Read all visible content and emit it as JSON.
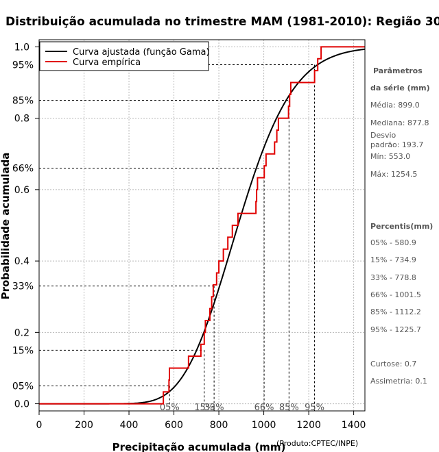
{
  "chart_data": {
    "type": "line",
    "title": "Distribuição acumulada no trimestre MAM (1981-2010): Região 30",
    "xlabel": "Precipitação acumulada (mm)",
    "ylabel": "Probabilidade acumulada",
    "xlim": [
      0,
      1450
    ],
    "ylim": [
      -0.02,
      1.02
    ],
    "x_ticks": [
      0,
      200,
      400,
      600,
      800,
      1000,
      1200,
      1400
    ],
    "x_tick_labels": [
      "0",
      "200",
      "400",
      "600",
      "800",
      "1000",
      "1200",
      "1400"
    ],
    "y_ticks": [
      0.0,
      0.2,
      0.4,
      0.6,
      0.8,
      1.0
    ],
    "y_tick_labels": [
      "0.0",
      "0.2",
      "0.4",
      "0.6",
      "0.8",
      "1.0"
    ],
    "grid": true,
    "legend_position": "top-left",
    "credit": "(Produto:CPTEC/INPE)",
    "gamma_fit": {
      "name": "Curva ajustada (função Gama)",
      "color": "#000000",
      "mean": 899.0,
      "sd": 193.7
    },
    "empirical": {
      "name": "Curva empírica",
      "color": "#e00000",
      "x_start": 0,
      "x_end": 1450,
      "steps": [
        {
          "x": 553,
          "y": 0.0333
        },
        {
          "x": 578,
          "y": 0.0667
        },
        {
          "x": 580,
          "y": 0.1
        },
        {
          "x": 665,
          "y": 0.1333
        },
        {
          "x": 720,
          "y": 0.1667
        },
        {
          "x": 735,
          "y": 0.2
        },
        {
          "x": 740,
          "y": 0.2333
        },
        {
          "x": 760,
          "y": 0.2667
        },
        {
          "x": 768,
          "y": 0.3
        },
        {
          "x": 775,
          "y": 0.3333
        },
        {
          "x": 790,
          "y": 0.3667
        },
        {
          "x": 800,
          "y": 0.4
        },
        {
          "x": 820,
          "y": 0.4333
        },
        {
          "x": 840,
          "y": 0.4667
        },
        {
          "x": 860,
          "y": 0.5
        },
        {
          "x": 885,
          "y": 0.5333
        },
        {
          "x": 965,
          "y": 0.5667
        },
        {
          "x": 968,
          "y": 0.6
        },
        {
          "x": 972,
          "y": 0.6333
        },
        {
          "x": 1002,
          "y": 0.6667
        },
        {
          "x": 1010,
          "y": 0.7
        },
        {
          "x": 1048,
          "y": 0.7333
        },
        {
          "x": 1058,
          "y": 0.7667
        },
        {
          "x": 1065,
          "y": 0.8
        },
        {
          "x": 1110,
          "y": 0.8333
        },
        {
          "x": 1115,
          "y": 0.8667
        },
        {
          "x": 1120,
          "y": 0.9
        },
        {
          "x": 1226,
          "y": 0.9333
        },
        {
          "x": 1240,
          "y": 0.9667
        },
        {
          "x": 1255,
          "y": 1.0
        }
      ]
    },
    "percentile_lines": [
      {
        "p": 0.05,
        "x": 580.9,
        "y_label": "05%",
        "x_label": "05%"
      },
      {
        "p": 0.15,
        "x": 734.9,
        "y_label": "15%",
        "x_label": "15%"
      },
      {
        "p": 0.33,
        "x": 778.8,
        "y_label": "33%",
        "x_label": "33%"
      },
      {
        "p": 0.66,
        "x": 1001.5,
        "y_label": "66%",
        "x_label": "66%"
      },
      {
        "p": 0.85,
        "x": 1112.2,
        "y_label": "85%",
        "x_label": "85%"
      },
      {
        "p": 0.95,
        "x": 1225.7,
        "y_label": "95%",
        "x_label": "95%"
      }
    ]
  },
  "side_panel": {
    "params_title_1": "Parâmetros",
    "params_title_2": "da série (mm)",
    "media": "Média: 899.0",
    "mediana": "Mediana: 877.8",
    "desvio_1": "Desvio",
    "desvio_2": "padrão: 193.7",
    "min": "Mín: 553.0",
    "max": "Máx: 1254.5",
    "percentis_title": "Percentis(mm)",
    "percentis": [
      "05% - 580.9",
      "15% - 734.9",
      "33% - 778.8",
      "66% - 1001.5",
      "85% - 1112.2",
      "95% - 1225.7"
    ],
    "curtose": "Curtose: 0.7",
    "assimetria": "Assimetria: 0.1"
  }
}
